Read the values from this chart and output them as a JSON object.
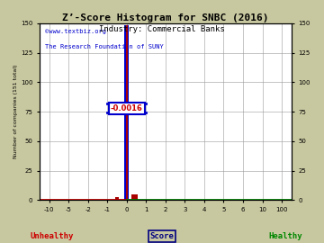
{
  "title": "Z’-Score Histogram for SNBC (2016)",
  "subtitle": "Industry: Commercial Banks",
  "watermark1": "©www.textbiz.org",
  "watermark2": "The Research Foundation of SUNY",
  "ylabel_left": "Number of companies (151 total)",
  "xlabel_center": "Score",
  "xlabel_left": "Unhealthy",
  "xlabel_right": "Healthy",
  "annotation": "-0.0016",
  "xtick_vals": [
    -10,
    -5,
    -2,
    -1,
    0,
    1,
    2,
    3,
    4,
    5,
    6,
    10,
    100
  ],
  "xtick_labels": [
    "-10",
    "-5",
    "-2",
    "-1",
    "0",
    "1",
    "2",
    "3",
    "4",
    "5",
    "6",
    "10",
    "100"
  ],
  "yticks": [
    0,
    25,
    50,
    75,
    100,
    125,
    150
  ],
  "ylim": [
    0,
    150
  ],
  "bg_color": "#c8c8a0",
  "plot_bg_color": "#ffffff",
  "watermark_color": "#0000cc",
  "unhealthy_color": "#cc0000",
  "healthy_color": "#008800",
  "score_color": "#000080",
  "grid_color": "#999999",
  "annotation_box_color": "#ffffff",
  "annotation_text_color": "#cc0000",
  "bar_blue_color": "#0000cc",
  "bar_red_color": "#aa0000",
  "xline_left_color": "#cc0000",
  "xline_right_color": "#008800",
  "annot_line_color": "#0000cc",
  "bar_tall_height": 148,
  "bar_small_height": 5,
  "bar_neg_height": 3,
  "snbc_score": -0.0016
}
